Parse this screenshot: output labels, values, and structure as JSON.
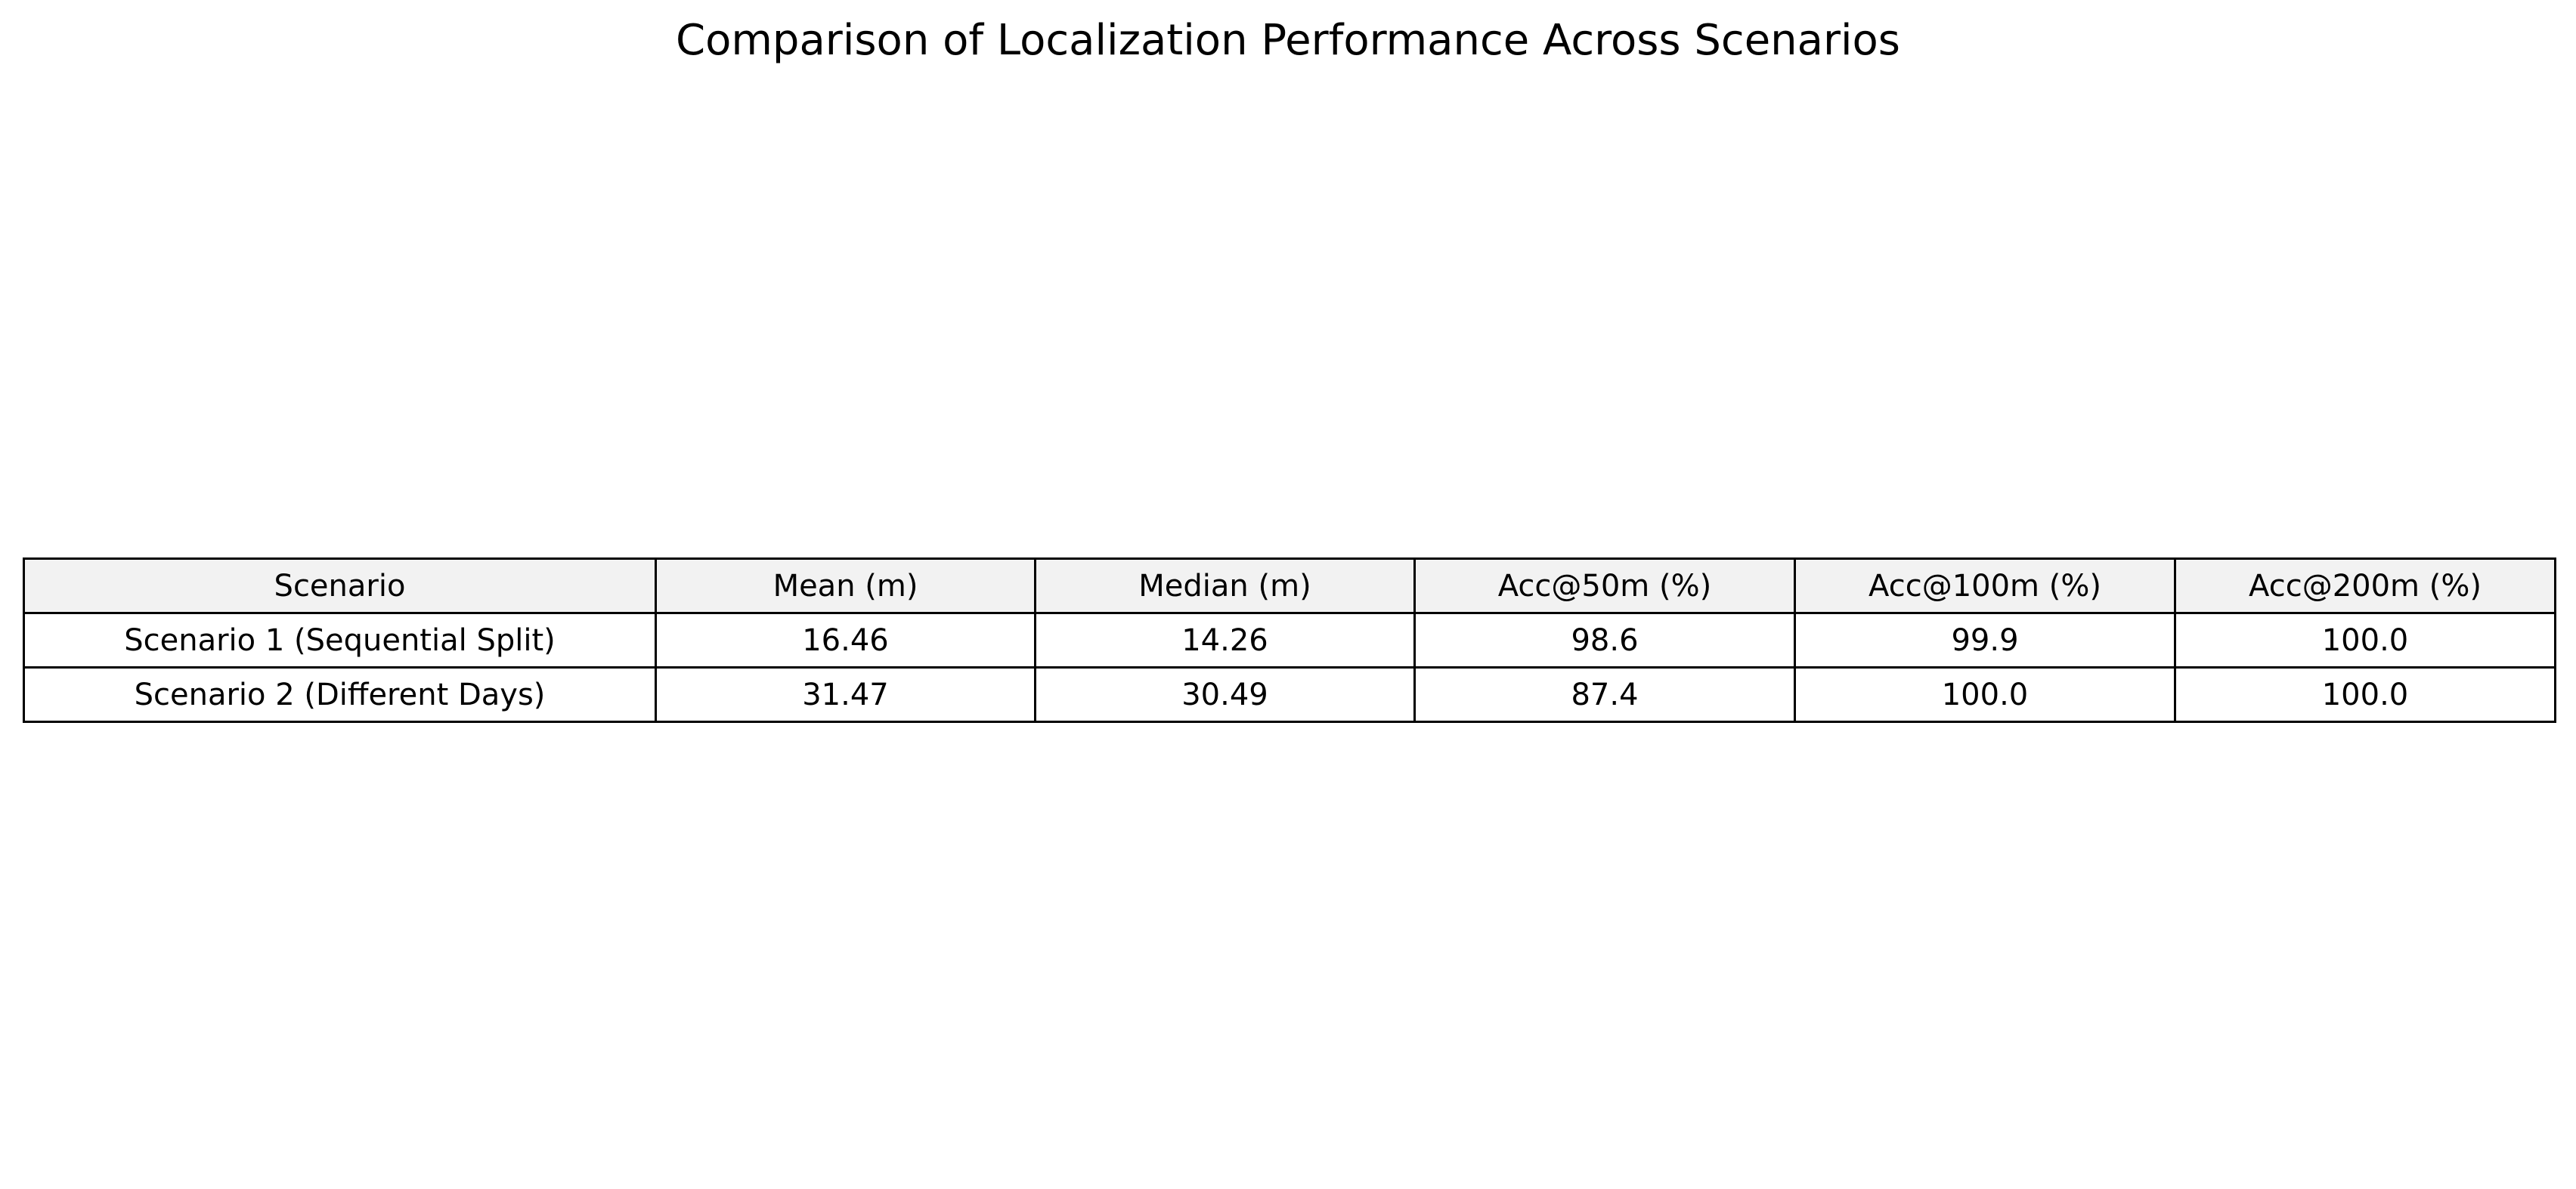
{
  "chart_data": {
    "type": "table",
    "title": "Comparison of Localization Performance Across Scenarios",
    "columns": [
      "Scenario",
      "Mean (m)",
      "Median (m)",
      "Acc@50m (%)",
      "Acc@100m (%)",
      "Acc@200m (%)"
    ],
    "rows": [
      [
        "Scenario 1 (Sequential Split)",
        "16.46",
        "14.26",
        "98.6",
        "99.9",
        "100.0"
      ],
      [
        "Scenario 2 (Different Days)",
        "31.47",
        "30.49",
        "87.4",
        "100.0",
        "100.0"
      ]
    ],
    "header_background": "#f2f2f2",
    "border_color": "#000000"
  }
}
